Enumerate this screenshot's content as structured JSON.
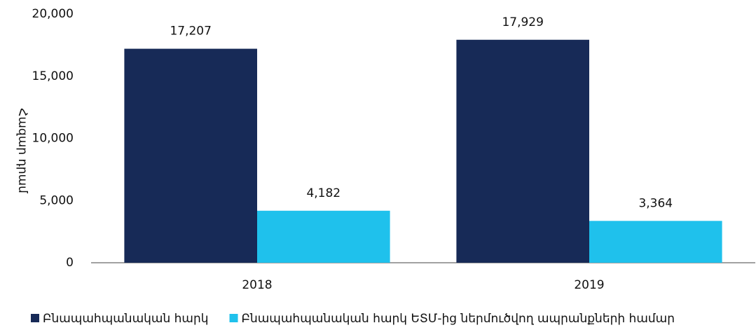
{
  "chart_data": {
    "type": "bar",
    "y_label": "Հազար դրամ",
    "categories": [
      "2018",
      "2019"
    ],
    "series": [
      {
        "name": "Բնապահպանական հարկ",
        "color": "#172a57",
        "values": [
          17207,
          17929
        ],
        "value_labels": [
          "17,207",
          "17,929"
        ]
      },
      {
        "name": "Բնապահպանական հարկ ԵՏՄ-ից ներմուծվող ապրանքների համար",
        "color": "#1fc1ec",
        "values": [
          4182,
          3364
        ],
        "value_labels": [
          "4,182",
          "3,364"
        ]
      }
    ],
    "ylim": [
      0,
      20000
    ],
    "yticks": [
      0,
      {
        "value": 5000,
        "label": "5,000"
      },
      {
        "value": 10000,
        "label": "10,000"
      },
      {
        "value": 15000,
        "label": "15,000"
      },
      {
        "value": 20000,
        "label": "20,000"
      }
    ],
    "grid": false
  }
}
